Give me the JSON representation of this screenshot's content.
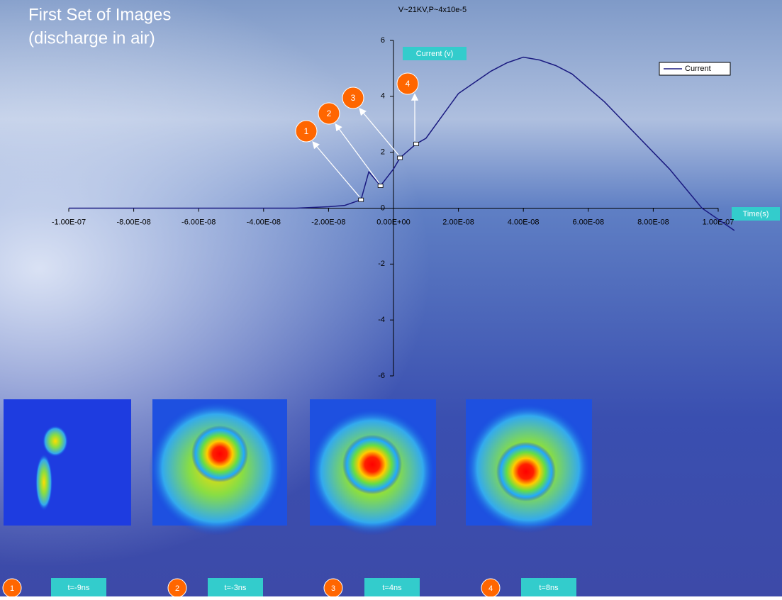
{
  "slide_title": [
    "First Set of Images",
    "(discharge in air)"
  ],
  "chart_data": {
    "type": "line",
    "title": "V~21KV,P~4x10e-5",
    "y_label": "Current (v)",
    "x_label": "Time(s)",
    "x": [
      -1e-07,
      -9e-08,
      -8e-08,
      -7e-08,
      -6e-08,
      -5e-08,
      -4e-08,
      -3e-08,
      -2e-08,
      -1.5e-08,
      -1e-08,
      -7.6e-09,
      -4e-09,
      0,
      2e-09,
      5e-09,
      7e-09,
      1e-08,
      1.5e-08,
      2e-08,
      2.5e-08,
      3e-08,
      3.5e-08,
      4e-08,
      4.5e-08,
      5e-08,
      5.5e-08,
      6e-08,
      6.5e-08,
      7e-08,
      7.5e-08,
      8e-08,
      8.5e-08,
      9e-08,
      9.5e-08,
      1e-07,
      1.05e-07
    ],
    "series": [
      {
        "name": "Current",
        "color": "#1a1a80",
        "values": [
          0,
          0,
          0,
          0,
          0,
          0,
          0,
          0,
          0.05,
          0.1,
          0.3,
          1.3,
          0.8,
          1.4,
          1.8,
          2.1,
          2.3,
          2.5,
          3.3,
          4.1,
          4.5,
          4.9,
          5.2,
          5.4,
          5.3,
          5.1,
          4.8,
          4.3,
          3.8,
          3.2,
          2.6,
          2.0,
          1.4,
          0.7,
          0.0,
          -0.4,
          -0.8
        ]
      }
    ],
    "xlim": [
      -1e-07,
      1e-07
    ],
    "ylim": [
      -6,
      6
    ],
    "xticks": [
      {
        "value": -1e-07,
        "label": "-1.00E-07"
      },
      {
        "value": -8e-08,
        "label": "-8.00E-08"
      },
      {
        "value": -6e-08,
        "label": "-6.00E-08"
      },
      {
        "value": -4e-08,
        "label": "-4.00E-08"
      },
      {
        "value": -2e-08,
        "label": "-2.00E-08"
      },
      {
        "value": 0,
        "label": "0.00E+00"
      },
      {
        "value": 2e-08,
        "label": "2.00E-08"
      },
      {
        "value": 4e-08,
        "label": "4.00E-08"
      },
      {
        "value": 6e-08,
        "label": "6.00E-08"
      },
      {
        "value": 8e-08,
        "label": "8.00E-08"
      },
      {
        "value": 1e-07,
        "label": "1.00E-07"
      }
    ],
    "yticks": [
      -6,
      -4,
      -2,
      0,
      2,
      4,
      6
    ],
    "legend": "top-right",
    "annotations": [
      {
        "label": "1",
        "x": -1e-08,
        "y": 0.3
      },
      {
        "label": "2",
        "x": -4e-09,
        "y": 0.8
      },
      {
        "label": "3",
        "x": 2e-09,
        "y": 1.8
      },
      {
        "label": "4",
        "x": 7e-09,
        "y": 2.3
      }
    ]
  },
  "images": [
    {
      "number": "1",
      "caption": "t=-9ns"
    },
    {
      "number": "2",
      "caption": "t=-3ns"
    },
    {
      "number": "3",
      "caption": "t=4ns"
    },
    {
      "number": "4",
      "caption": "t=8ns"
    }
  ]
}
